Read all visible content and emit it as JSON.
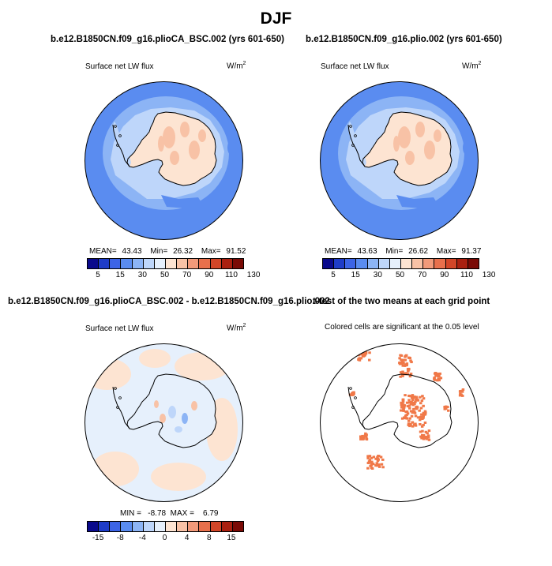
{
  "title": "DJF",
  "colors": {
    "abs_scale": [
      "#0a0a8c",
      "#1e3cc8",
      "#3c64e6",
      "#5a8cf0",
      "#8cb4f5",
      "#bed6fa",
      "#e6f0fc",
      "#fde4d2",
      "#f8c2a6",
      "#f29a7a",
      "#e8704c",
      "#d24628",
      "#aa2010",
      "#7a0a05"
    ],
    "diff_scale": [
      "#0a0a8c",
      "#1e3cc8",
      "#3c64e6",
      "#5a8cf0",
      "#8cb4f5",
      "#bed6fa",
      "#e6f0fc",
      "#fde4d2",
      "#f8c2a6",
      "#f29a7a",
      "#e8704c",
      "#d24628",
      "#aa2010",
      "#7a0a05"
    ],
    "sig_color": "#f07848",
    "ocean_dark": "#5a8cf0",
    "ocean_mid": "#8cb4f5",
    "ocean_light": "#bed6fa",
    "land_pale": "#fde4d2",
    "land_peach": "#f8c2a6"
  },
  "panels": [
    {
      "id": "case1",
      "title": "b.e12.B1850CN.f09_g16.plioCA_BSC.002 (yrs 601-650)",
      "variable": "Surface net LW flux",
      "unit": "W/m",
      "unit_exp": "2",
      "mean_label": "MEAN=",
      "mean": "43.43",
      "min_label": "Min=",
      "min": "26.32",
      "max_label": "Max=",
      "max": "91.52"
    },
    {
      "id": "case2",
      "title": "b.e12.B1850CN.f09_g16.plio.002 (yrs 601-650)",
      "variable": "Surface net LW flux",
      "unit": "W/m",
      "unit_exp": "2",
      "mean_label": "MEAN=",
      "mean": "43.63",
      "min_label": "Min=",
      "min": "26.62",
      "max_label": "Max=",
      "max": "91.37"
    },
    {
      "id": "diff",
      "title": "b.e12.B1850CN.f09_g16.plioCA_BSC.002 - b.e12.B1850CN.f09_g16.plio.002",
      "variable": "Surface net LW flux",
      "unit": "W/m",
      "unit_exp": "2",
      "stat_text": "MIN =   -8.78  MAX =    6.79"
    },
    {
      "id": "ttest",
      "title": "t-test of the two means at each grid point",
      "subtitle": "Colored cells are significant at the 0.05 level"
    }
  ],
  "colorbars": {
    "abs_ticks": [
      "5",
      "15",
      "30",
      "50",
      "70",
      "90",
      "110",
      "130"
    ],
    "diff_ticks": [
      "-15",
      "-8",
      "-4",
      "0",
      "4",
      "8",
      "15"
    ]
  },
  "chart_data": [
    {
      "type": "heatmap",
      "title": "b.e12.B1850CN.f09_g16.plioCA_BSC.002 (yrs 601-650)",
      "subtitle": "Surface net LW flux",
      "units": "W/m2",
      "projection": "south-polar-stereographic",
      "stats": {
        "mean": 43.43,
        "min": 26.32,
        "max": 91.52
      },
      "contour_levels": [
        5,
        10,
        15,
        20,
        30,
        40,
        50,
        60,
        70,
        80,
        90,
        100,
        110,
        120,
        130
      ]
    },
    {
      "type": "heatmap",
      "title": "b.e12.B1850CN.f09_g16.plio.002 (yrs 601-650)",
      "subtitle": "Surface net LW flux",
      "units": "W/m2",
      "projection": "south-polar-stereographic",
      "stats": {
        "mean": 43.63,
        "min": 26.62,
        "max": 91.37
      },
      "contour_levels": [
        5,
        10,
        15,
        20,
        30,
        40,
        50,
        60,
        70,
        80,
        90,
        100,
        110,
        120,
        130
      ]
    },
    {
      "type": "heatmap",
      "title": "b.e12.B1850CN.f09_g16.plioCA_BSC.002 - b.e12.B1850CN.f09_g16.plio.002",
      "subtitle": "Surface net LW flux",
      "units": "W/m2",
      "projection": "south-polar-stereographic",
      "stats": {
        "min": -8.78,
        "max": 6.79
      },
      "contour_levels": [
        -15,
        -12,
        -8,
        -6,
        -4,
        -2,
        0,
        2,
        4,
        6,
        8,
        12,
        15
      ]
    },
    {
      "type": "heatmap",
      "title": "t-test of the two means at each grid point",
      "subtitle": "Colored cells are significant at the 0.05 level",
      "significance_level": 0.05,
      "projection": "south-polar-stereographic"
    }
  ]
}
